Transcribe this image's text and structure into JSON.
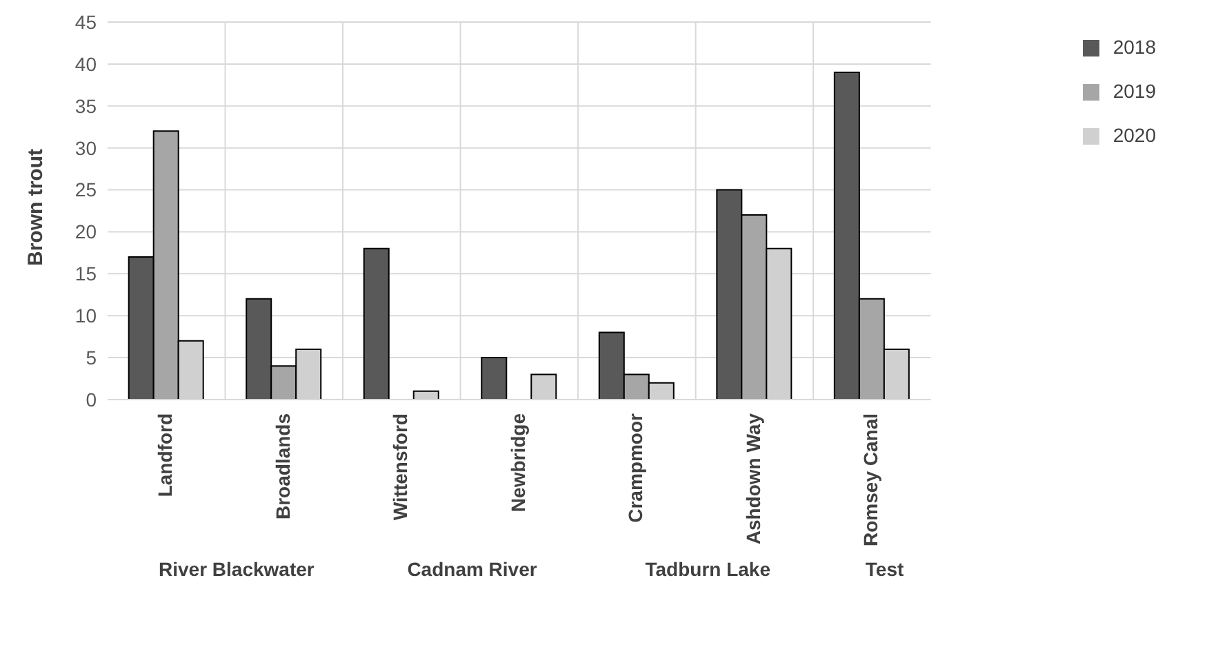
{
  "chart_data": {
    "type": "bar",
    "categories": [
      "Landford",
      "Broadlands",
      "Wittensford",
      "Newbridge",
      "Crampmoor",
      "Ashdown Way",
      "Romsey Canal"
    ],
    "series": [
      {
        "name": "2018",
        "color": "#595959",
        "values": [
          17,
          12,
          18,
          5,
          8,
          25,
          39
        ]
      },
      {
        "name": "2019",
        "color": "#a6a6a6",
        "values": [
          32,
          4,
          null,
          null,
          3,
          22,
          12
        ]
      },
      {
        "name": "2020",
        "color": "#d0d0d0",
        "values": [
          7,
          6,
          1,
          3,
          2,
          18,
          6
        ]
      }
    ],
    "ylabel": "Brown trout",
    "ylim": [
      0,
      45
    ],
    "yticks": [
      0,
      5,
      10,
      15,
      20,
      25,
      30,
      35,
      40,
      45
    ],
    "grid": true,
    "legend": "top right",
    "annotations": [
      "River Blackwater",
      "Cadnam River",
      "Tadburn Lake",
      "Test"
    ]
  }
}
